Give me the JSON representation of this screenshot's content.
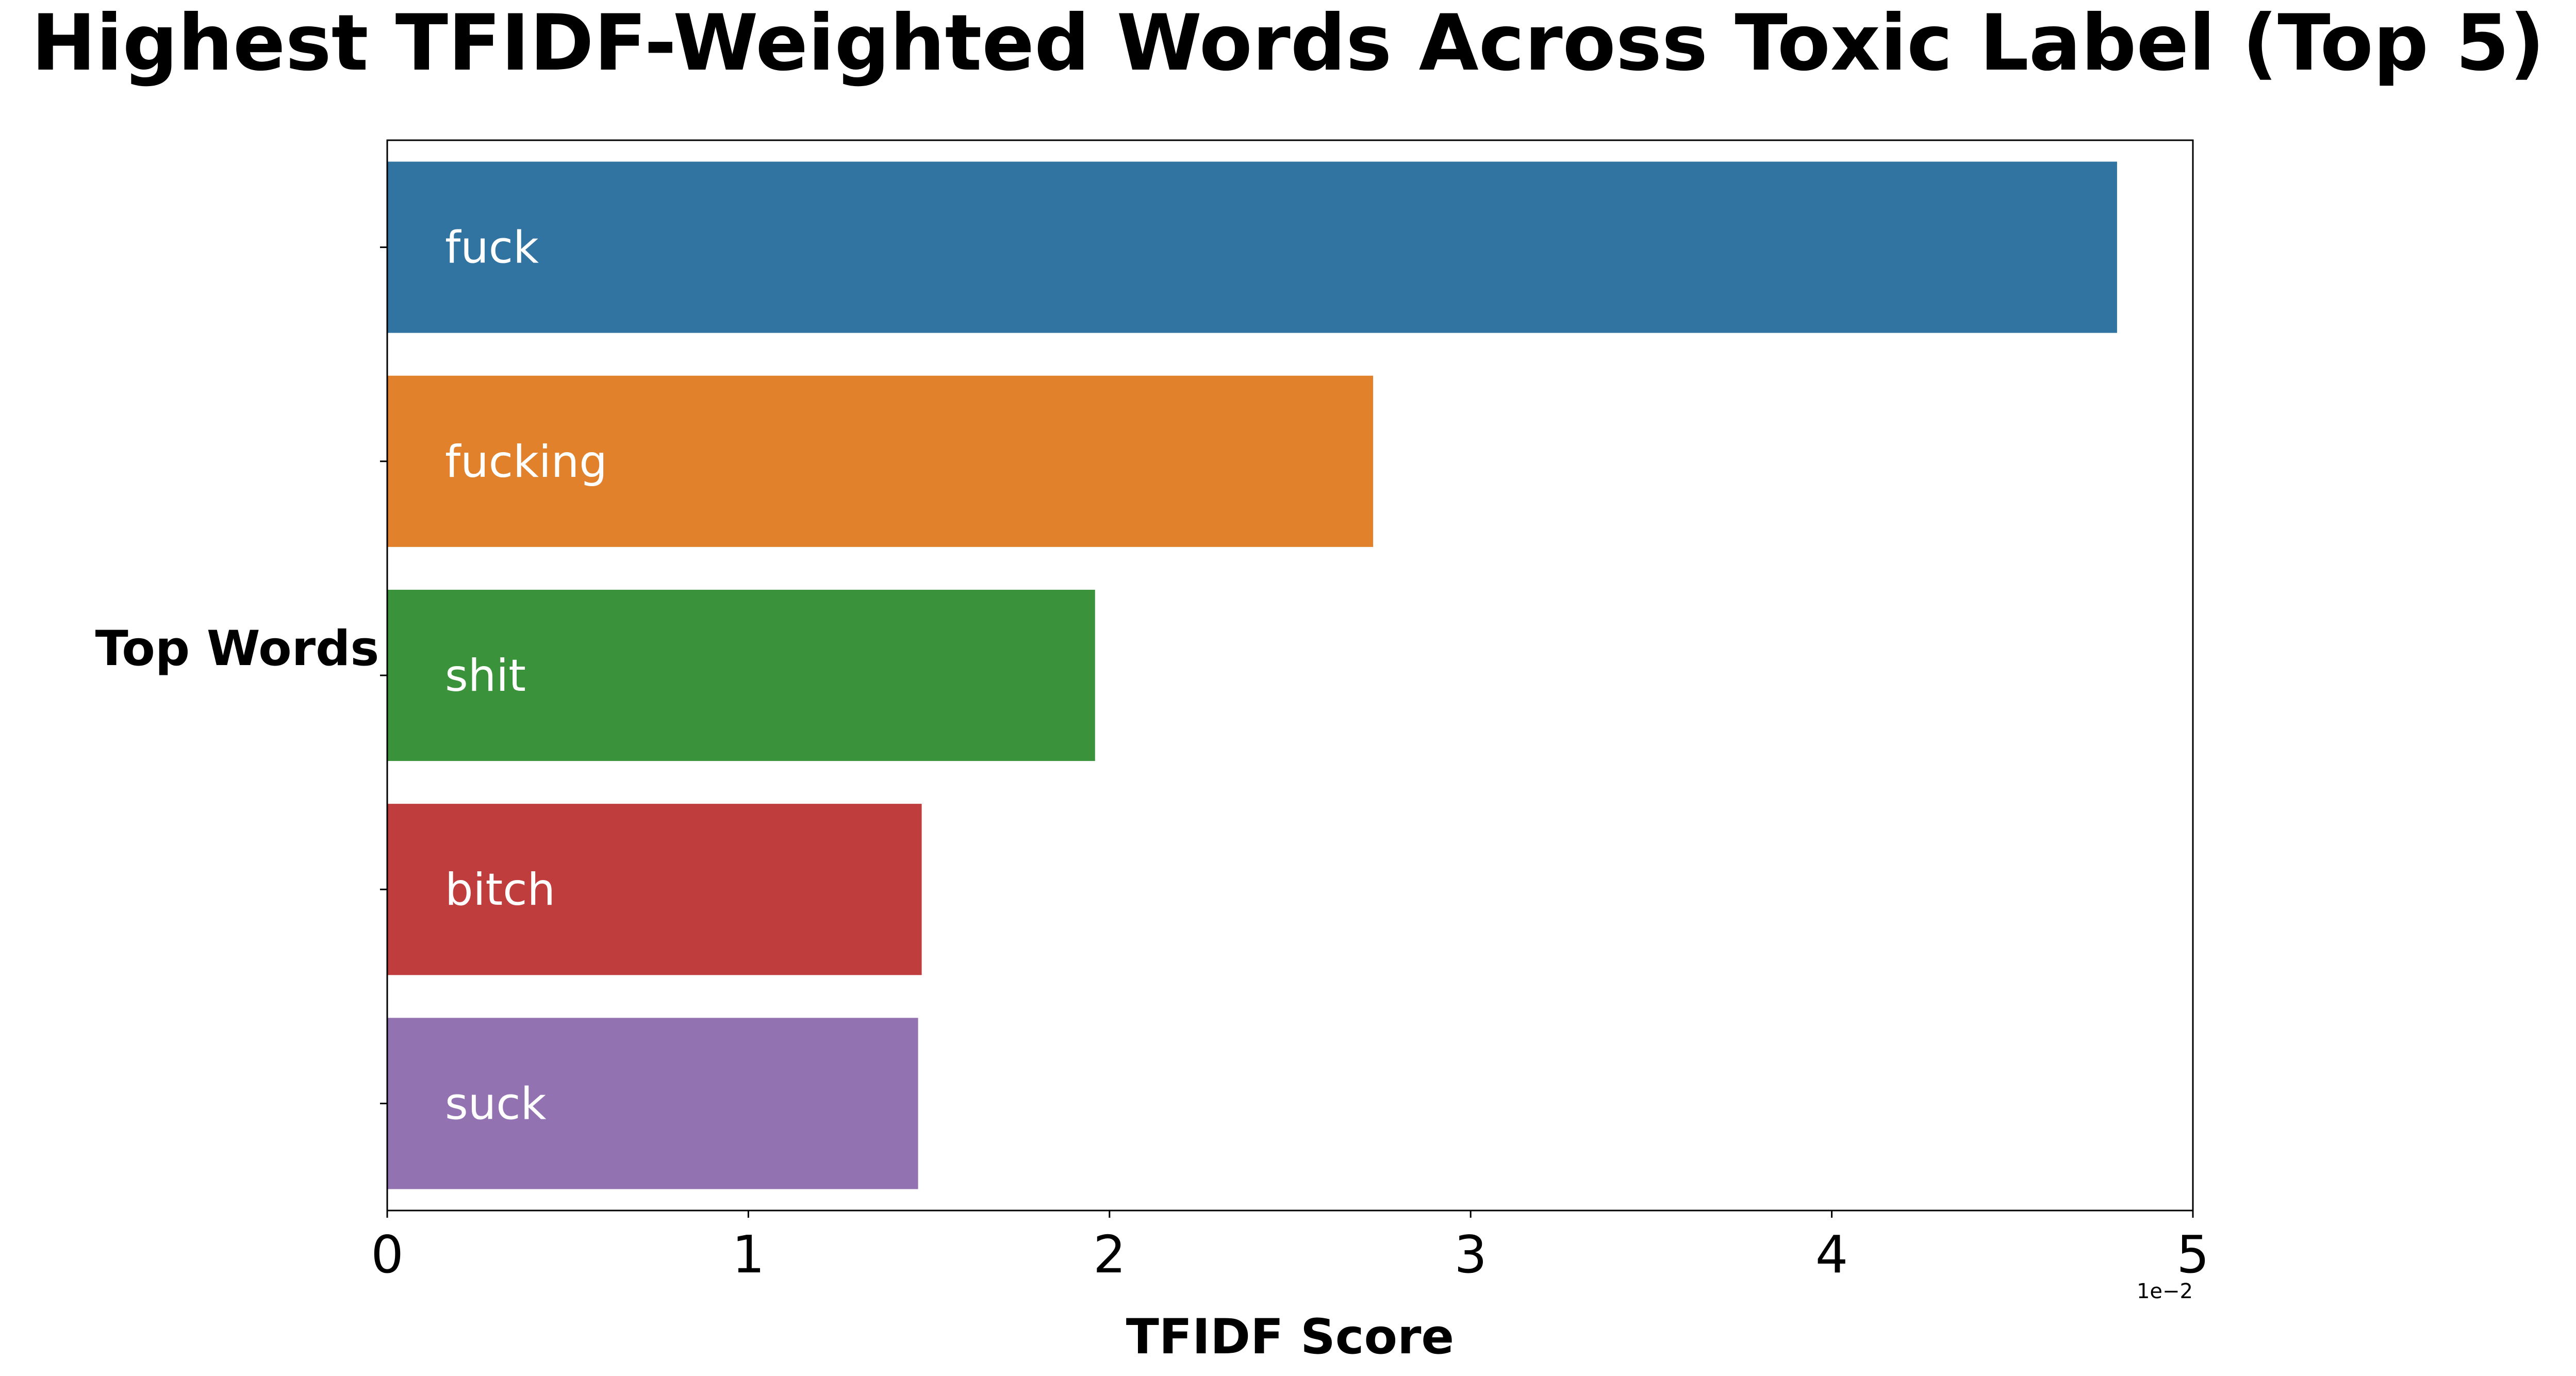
{
  "chart_data": {
    "type": "bar",
    "orientation": "horizontal",
    "title": "Highest TFIDF-Weighted Words Across Toxic Label (Top 5)",
    "xlabel": "TFIDF Score",
    "ylabel": "Top Words",
    "x_offset_label": "1e−2",
    "categories": [
      "fuck",
      "fucking",
      "shit",
      "bitch",
      "suck"
    ],
    "values": [
      0.0479,
      0.0273,
      0.0196,
      0.0148,
      0.0147
    ],
    "colors": [
      "#3274a1",
      "#e1812c",
      "#3a923a",
      "#c03d3e",
      "#9372b2"
    ],
    "xlim": [
      0,
      0.05
    ],
    "xticks": [
      0,
      0.01,
      0.02,
      0.03,
      0.04,
      0.05
    ],
    "xtick_labels": [
      "0",
      "1",
      "2",
      "3",
      "4",
      "5"
    ],
    "grid": false,
    "legend": "none"
  }
}
